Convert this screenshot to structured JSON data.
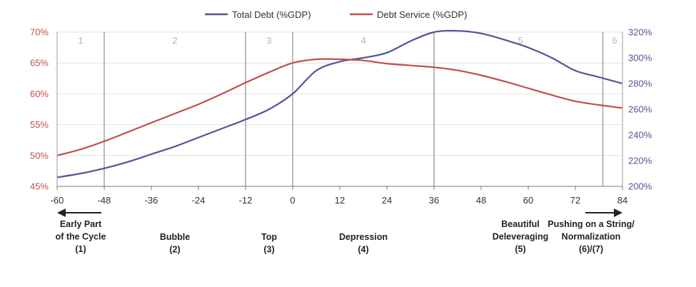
{
  "chart_data": {
    "type": "line",
    "x_ticks": [
      -60,
      -48,
      -36,
      -24,
      -12,
      0,
      12,
      24,
      36,
      48,
      60,
      72,
      84
    ],
    "xlim": [
      -60,
      84
    ],
    "y_left": {
      "ticks": [
        "45%",
        "50%",
        "55%",
        "60%",
        "65%",
        "70%"
      ],
      "range": [
        45,
        70
      ],
      "color": "#c0504d"
    },
    "y_right": {
      "ticks": [
        "200%",
        "220%",
        "240%",
        "260%",
        "280%",
        "300%",
        "320%"
      ],
      "range": [
        200,
        320
      ],
      "color": "#4f5597"
    },
    "legend": {
      "position": "top-center"
    },
    "series": [
      {
        "name": "Total Debt (%GDP)",
        "axis": "right",
        "color": "#4f5597",
        "x": [
          -60,
          -54,
          -48,
          -42,
          -36,
          -30,
          -24,
          -18,
          -12,
          -6,
          0,
          6,
          12,
          18,
          24,
          30,
          36,
          42,
          48,
          54,
          60,
          66,
          72,
          78,
          84
        ],
        "values": [
          207,
          210,
          214,
          219,
          225,
          231,
          238,
          245,
          252,
          260,
          272,
          290,
          297,
          300,
          304,
          313,
          320,
          321,
          319,
          314,
          308,
          300,
          290,
          285,
          280
        ]
      },
      {
        "name": "Debt Service (%GDP)",
        "axis": "left",
        "color": "#c0504d",
        "x": [
          -60,
          -54,
          -48,
          -42,
          -36,
          -30,
          -24,
          -18,
          -12,
          -6,
          0,
          6,
          12,
          18,
          24,
          30,
          36,
          42,
          48,
          54,
          60,
          66,
          72,
          78,
          84
        ],
        "values": [
          50.0,
          51.0,
          52.3,
          53.8,
          55.3,
          56.8,
          58.3,
          60.0,
          61.8,
          63.5,
          65.0,
          65.6,
          65.6,
          65.4,
          64.9,
          64.6,
          64.3,
          63.8,
          63.0,
          62.0,
          60.9,
          59.8,
          58.8,
          58.2,
          57.7
        ]
      }
    ],
    "phases": [
      {
        "label": "1",
        "center": -54
      },
      {
        "label": "2",
        "center": -30
      },
      {
        "label": "3",
        "center": -6
      },
      {
        "label": "4",
        "center": 18
      },
      {
        "label": "5",
        "center": 58
      },
      {
        "label": "6",
        "center": 82
      }
    ],
    "phase_boundaries": [
      -48,
      -12,
      0,
      36,
      79
    ]
  },
  "captions": [
    {
      "lines": [
        "Early Part",
        "of the Cycle",
        "(1)"
      ],
      "x": -54
    },
    {
      "lines": [
        "Bubble",
        "(2)"
      ],
      "x": -30
    },
    {
      "lines": [
        "Top",
        "(3)"
      ],
      "x": -6
    },
    {
      "lines": [
        "Depression",
        "(4)"
      ],
      "x": 18
    },
    {
      "lines": [
        "Beautiful",
        "Deleveraging",
        "(5)"
      ],
      "x": 58
    },
    {
      "lines": [
        "Pushing on a String/",
        "Normalization",
        "(6)/(7)"
      ],
      "x": 76
    }
  ]
}
